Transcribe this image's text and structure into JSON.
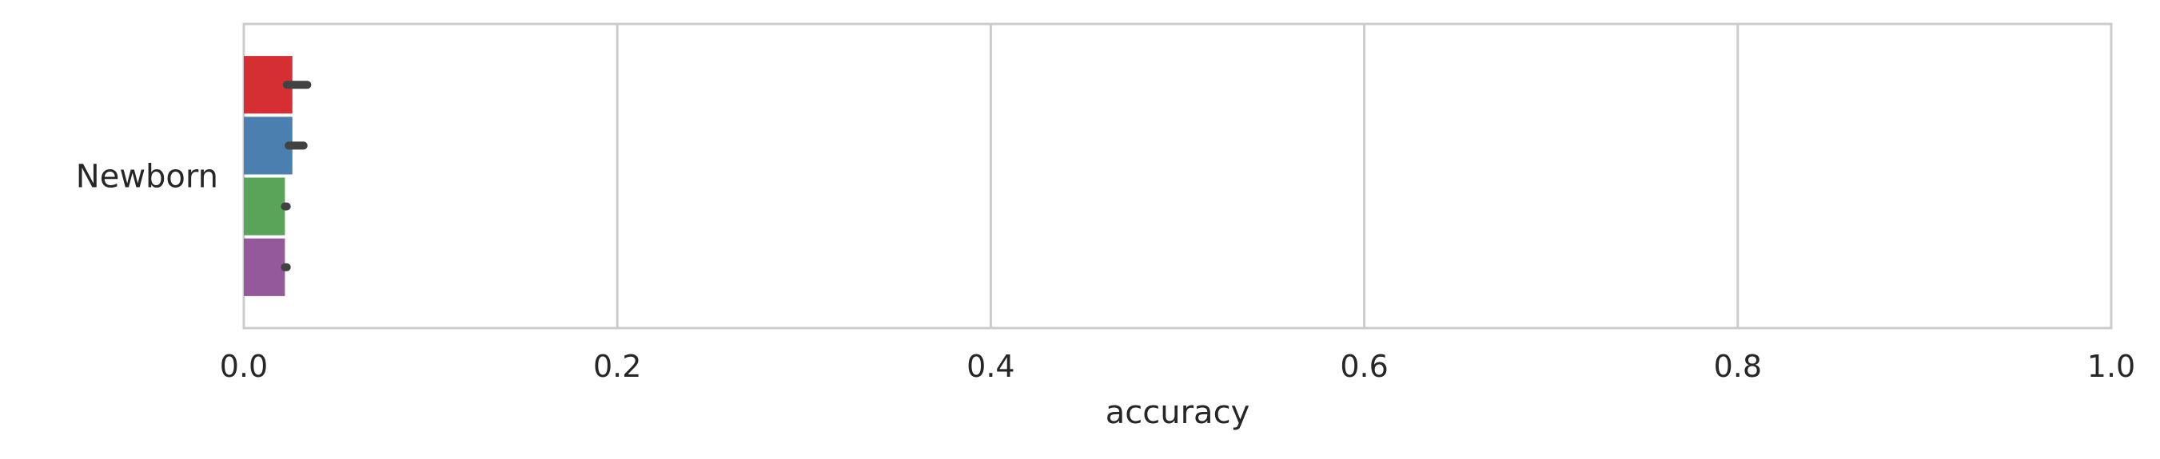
{
  "chart_data": {
    "type": "bar",
    "orientation": "horizontal",
    "categories": [
      "Newborn"
    ],
    "series": [
      {
        "color": "#d62f33",
        "values": [
          0.026
        ],
        "error": [
          [
            0.023,
            0.034
          ]
        ]
      },
      {
        "color": "#4a7fb0",
        "values": [
          0.026
        ],
        "error": [
          [
            0.024,
            0.032
          ]
        ]
      },
      {
        "color": "#59a459",
        "values": [
          0.022
        ],
        "error": [
          [
            0.022,
            0.023
          ]
        ]
      },
      {
        "color": "#93599a",
        "values": [
          0.022
        ],
        "error": [
          [
            0.022,
            0.023
          ]
        ]
      }
    ],
    "xlabel": "accuracy",
    "ylabel": "",
    "xlim": [
      0,
      1
    ],
    "xticks": [
      "0.0",
      "0.2",
      "0.4",
      "0.6",
      "0.8",
      "1.0"
    ],
    "grid": "vertical",
    "legend": "none"
  }
}
